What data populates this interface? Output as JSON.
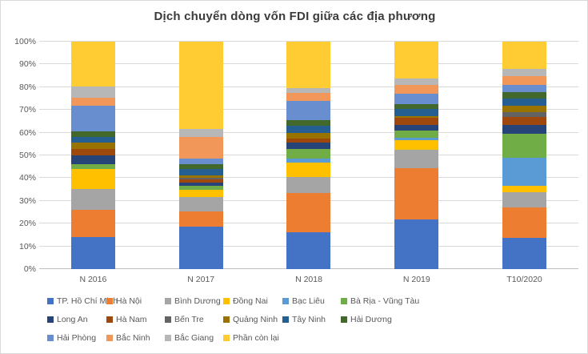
{
  "title": "Dịch chuyển dòng vốn FDI giữa các địa phương",
  "colors": {
    "title_text": "#3B3B3B",
    "axis_text": "#595959",
    "gridline": "#D9D9D9",
    "axis_line": "#BFBFBF",
    "frame_border": "#D9D9D9"
  },
  "chart_data": {
    "type": "bar",
    "variant": "100%-stacked-column",
    "title": "Dịch chuyển dòng vốn FDI giữa các địa phương",
    "xlabel": "",
    "ylabel": "",
    "ylim": [
      0,
      100
    ],
    "y_tick_step": 10,
    "y_tick_labels": [
      "0%",
      "10%",
      "20%",
      "30%",
      "40%",
      "50%",
      "60%",
      "70%",
      "80%",
      "90%",
      "100%"
    ],
    "grid": true,
    "legend_position": "bottom",
    "categories": [
      "N 2016",
      "N 2017",
      "N 2018",
      "N 2019",
      "T10/2020"
    ],
    "series": [
      {
        "name": "TP. Hồ Chí Minh",
        "color": "#4472C4",
        "values": [
          14.0,
          18.8,
          16.1,
          21.7,
          13.8
        ]
      },
      {
        "name": "Hà Nội",
        "color": "#ED7D31",
        "values": [
          12.0,
          6.4,
          17.2,
          22.6,
          13.2
        ]
      },
      {
        "name": "Bình Dương",
        "color": "#A5A5A5",
        "values": [
          9.3,
          6.5,
          7.2,
          8.2,
          6.8
        ]
      },
      {
        "name": "Đồng Nai",
        "color": "#FFC000",
        "values": [
          8.7,
          3.3,
          6.4,
          4.2,
          2.8
        ]
      },
      {
        "name": "Bạc Liêu",
        "color": "#5B9BD5",
        "values": [
          0.0,
          0.0,
          1.6,
          0.9,
          12.4
        ]
      },
      {
        "name": "Bà Rịa - Vũng Tàu",
        "color": "#70AD47",
        "values": [
          2.0,
          1.7,
          4.3,
          3.2,
          10.6
        ]
      },
      {
        "name": "Long An",
        "color": "#264478",
        "values": [
          4.0,
          1.4,
          2.7,
          2.7,
          3.8
        ]
      },
      {
        "name": "Hà Nam",
        "color": "#9E480E",
        "values": [
          3.0,
          1.2,
          2.0,
          2.9,
          3.5
        ]
      },
      {
        "name": "Bến Tre",
        "color": "#636363",
        "values": [
          0.0,
          0.8,
          0.0,
          0.0,
          2.3
        ]
      },
      {
        "name": "Quảng Ninh",
        "color": "#997300",
        "values": [
          2.5,
          1.0,
          2.4,
          1.0,
          2.6
        ]
      },
      {
        "name": "Tây Ninh",
        "color": "#255E91",
        "values": [
          2.5,
          2.9,
          3.1,
          3.0,
          3.1
        ]
      },
      {
        "name": "Hải Dương",
        "color": "#43682B",
        "values": [
          2.5,
          2.0,
          2.4,
          2.3,
          3.1
        ]
      },
      {
        "name": "Hải Phòng",
        "color": "#698ED0",
        "values": [
          11.5,
          2.7,
          8.5,
          4.3,
          3.2
        ]
      },
      {
        "name": "Bắc Ninh",
        "color": "#F1975A",
        "values": [
          3.3,
          9.4,
          3.6,
          3.9,
          3.6
        ]
      },
      {
        "name": "Bắc Giang",
        "color": "#B7B7B7",
        "values": [
          5.1,
          3.5,
          2.1,
          2.8,
          3.2
        ]
      },
      {
        "name": "Phần còn lại",
        "color": "#FFCD33",
        "values": [
          19.6,
          38.4,
          20.4,
          16.3,
          12.0
        ]
      }
    ]
  }
}
